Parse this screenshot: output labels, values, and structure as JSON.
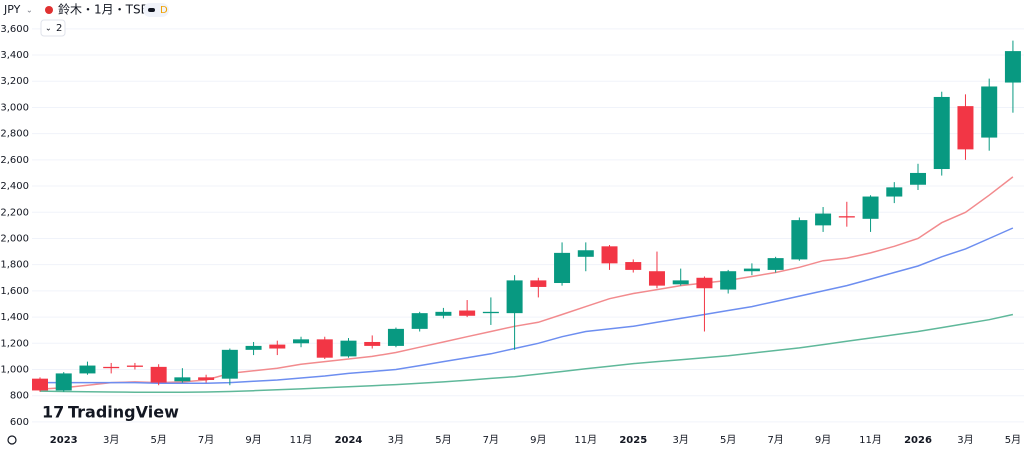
{
  "chart_data": {
    "type": "candlestick",
    "currency": "JPY",
    "title": "鈴木・1月・TSE",
    "interval_badge": "D",
    "indicator_count": "2",
    "watermark": "TradingView",
    "categories": [
      null,
      "2023",
      null,
      "3月",
      null,
      "5月",
      null,
      "7月",
      null,
      "9月",
      null,
      "11月",
      null,
      "2024",
      null,
      "3月",
      null,
      "5月",
      null,
      "7月",
      null,
      "9月",
      null,
      "11月",
      null,
      "2025",
      null,
      "3月",
      null,
      "5月",
      null,
      "7月",
      null,
      "9月",
      null,
      "11月",
      null,
      "2026",
      null,
      "3月",
      null,
      "5月"
    ],
    "open": [
      930,
      840,
      970,
      1020,
      1030,
      1020,
      910,
      940,
      930,
      1150,
      1190,
      1200,
      1230,
      1100,
      1210,
      1180,
      1310,
      1410,
      1450,
      1430,
      1430,
      1680,
      1660,
      1860,
      1940,
      1820,
      1750,
      1650,
      1700,
      1610,
      1750,
      1760,
      1840,
      2100,
      2170,
      2150,
      2320,
      2410,
      2530,
      3010,
      2770,
      3190
    ],
    "high": [
      940,
      980,
      1060,
      1050,
      1050,
      1040,
      1010,
      960,
      1160,
      1210,
      1220,
      1250,
      1250,
      1240,
      1260,
      1320,
      1440,
      1470,
      1530,
      1550,
      1720,
      1700,
      1970,
      1970,
      1950,
      1840,
      1900,
      1770,
      1710,
      1760,
      1810,
      1860,
      2160,
      2240,
      2280,
      2330,
      2430,
      2570,
      3120,
      3100,
      3220,
      3510
    ],
    "low": [
      830,
      830,
      960,
      970,
      1000,
      880,
      900,
      900,
      880,
      1110,
      1110,
      1170,
      1080,
      1090,
      1160,
      1170,
      1290,
      1390,
      1400,
      1340,
      1150,
      1550,
      1640,
      1750,
      1760,
      1740,
      1620,
      1640,
      1290,
      1580,
      1720,
      1740,
      1830,
      2050,
      2090,
      2050,
      2270,
      2370,
      2480,
      2600,
      2670,
      2960
    ],
    "close": [
      840,
      970,
      1030,
      1010,
      1020,
      900,
      940,
      920,
      1150,
      1180,
      1160,
      1230,
      1090,
      1220,
      1180,
      1310,
      1430,
      1440,
      1410,
      1440,
      1680,
      1630,
      1890,
      1910,
      1810,
      1760,
      1640,
      1680,
      1620,
      1750,
      1770,
      1850,
      2140,
      2190,
      2160,
      2320,
      2390,
      2500,
      3080,
      2680,
      3160,
      3430
    ],
    "up_color": "#089981",
    "down_color": "#f23645",
    "lines": [
      {
        "color": "#f28b8e",
        "values": [
          850,
          860,
          880,
          900,
          905,
          900,
          905,
          920,
          970,
          990,
          1010,
          1040,
          1060,
          1080,
          1100,
          1130,
          1170,
          1210,
          1250,
          1290,
          1330,
          1360,
          1420,
          1480,
          1540,
          1580,
          1610,
          1640,
          1660,
          1680,
          1710,
          1740,
          1780,
          1830,
          1850,
          1890,
          1940,
          2000,
          2120,
          2200,
          2330,
          2470
        ]
      },
      {
        "color": "#6d8ef0",
        "values": [
          900,
          900,
          900,
          900,
          900,
          895,
          895,
          895,
          900,
          910,
          920,
          935,
          950,
          970,
          985,
          1000,
          1030,
          1060,
          1090,
          1120,
          1160,
          1200,
          1250,
          1290,
          1310,
          1330,
          1360,
          1390,
          1420,
          1450,
          1480,
          1520,
          1560,
          1600,
          1640,
          1690,
          1740,
          1790,
          1860,
          1920,
          2000,
          2080
        ]
      },
      {
        "color": "#5fb89a",
        "values": [
          835,
          832,
          830,
          828,
          827,
          826,
          826,
          828,
          832,
          838,
          845,
          852,
          860,
          868,
          876,
          885,
          895,
          905,
          918,
          932,
          945,
          965,
          985,
          1005,
          1025,
          1045,
          1060,
          1075,
          1090,
          1105,
          1125,
          1145,
          1165,
          1190,
          1215,
          1240,
          1265,
          1290,
          1320,
          1350,
          1380,
          1420
        ]
      }
    ],
    "ylim": [
      500,
      3820
    ],
    "yticks": [
      600,
      800,
      {
        "value": 1000,
        "label": "1,000"
      },
      {
        "value": 1200,
        "label": "1,200"
      },
      {
        "value": 1400,
        "label": "1,400"
      },
      {
        "value": 1600,
        "label": "1,600"
      },
      {
        "value": 1800,
        "label": "1,800"
      },
      {
        "value": 2000,
        "label": "2,000"
      },
      {
        "value": 2200,
        "label": "2,200"
      },
      {
        "value": 2400,
        "label": "2,400"
      },
      {
        "value": 2600,
        "label": "2,600"
      },
      {
        "value": 2800,
        "label": "2,800"
      },
      {
        "value": 3000,
        "label": "3,000"
      },
      {
        "value": 3200,
        "label": "3,200"
      },
      {
        "value": 3400,
        "label": "3,400"
      },
      {
        "value": 3600,
        "label": "3,600"
      }
    ],
    "grid": true
  }
}
